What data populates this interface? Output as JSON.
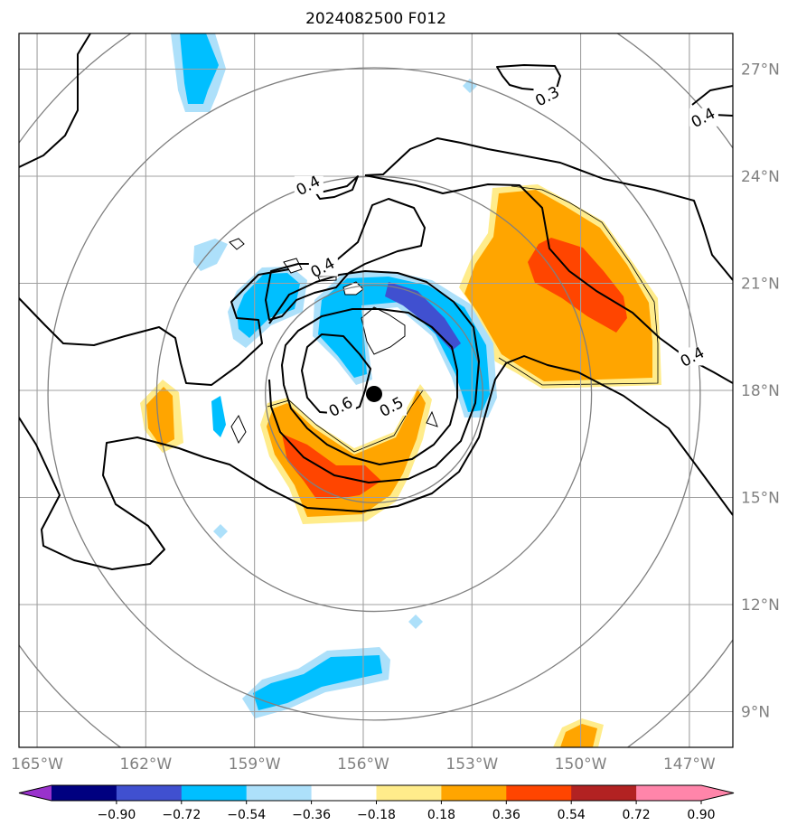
{
  "chart_data": {
    "type": "contour",
    "title": "2024082500 F012",
    "map": {
      "projection": "PlateCarree",
      "lon_range": [
        -165.5,
        -145.8
      ],
      "lat_range": [
        8.0,
        28.0
      ],
      "x_ticks": [
        -165,
        -162,
        -159,
        -156,
        -153,
        -150,
        -147
      ],
      "x_tick_labels": [
        "165°W",
        "162°W",
        "159°W",
        "156°W",
        "153°W",
        "150°W",
        "147°W"
      ],
      "y_ticks": [
        9,
        12,
        15,
        18,
        21,
        24,
        27
      ],
      "y_tick_labels": [
        "9°N",
        "12°N",
        "15°N",
        "18°N",
        "21°N",
        "24°N",
        "27°N"
      ],
      "y_label_side": "right",
      "grid": true
    },
    "center": {
      "lon": -155.7,
      "lat": 17.9
    },
    "range_rings_deg": [
      3,
      6,
      9,
      12
    ],
    "colorbar": {
      "orientation": "horizontal",
      "extend": "both",
      "levels": [
        -0.9,
        -0.72,
        -0.54,
        -0.36,
        -0.18,
        0.18,
        0.36,
        0.54,
        0.72,
        0.9
      ],
      "tick_labels": [
        "−0.90",
        "−0.72",
        "−0.54",
        "−0.36",
        "−0.18",
        "0.18",
        "0.36",
        "0.54",
        "0.72",
        "0.90"
      ],
      "colors": [
        "#9932cc",
        "#000080",
        "#4050d0",
        "#00bfff",
        "#ade0fa",
        "#ffffff",
        "#ffec8b",
        "#ffa500",
        "#ff4500",
        "#b22222",
        "#ff85aa"
      ]
    },
    "contour_labels": [
      {
        "text": "0.3",
        "lon": -150.9,
        "lat": 26.2
      },
      {
        "text": "0.4",
        "lon": -146.6,
        "lat": 25.6
      },
      {
        "text": "0.4",
        "lon": -157.5,
        "lat": 23.7
      },
      {
        "text": "0.4",
        "lon": -157.1,
        "lat": 21.4
      },
      {
        "text": "0.4",
        "lon": -146.9,
        "lat": 18.9
      },
      {
        "text": "0.6",
        "lon": -156.6,
        "lat": 17.5
      },
      {
        "text": "0.5",
        "lon": -155.2,
        "lat": 17.5
      }
    ]
  }
}
